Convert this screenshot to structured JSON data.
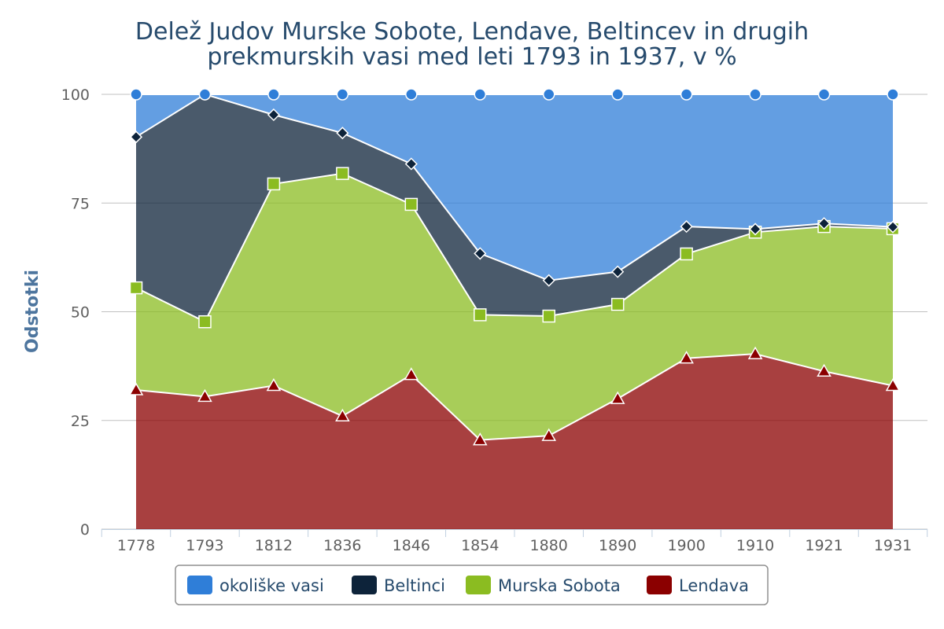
{
  "chart_data": {
    "type": "area",
    "stacking": "percent",
    "title": "Delež Judov Murske Sobote, Lendave, Beltincev in drugih",
    "subtitle": "prekmurskih vasi med leti 1793 in 1937, v %",
    "xlabel": "",
    "ylabel": "Odstotki",
    "ylim": [
      0,
      100
    ],
    "yticks": [
      "0",
      "25",
      "50",
      "75",
      "100"
    ],
    "categories": [
      "1778",
      "1793",
      "1812",
      "1836",
      "1846",
      "1854",
      "1880",
      "1890",
      "1900",
      "1910",
      "1921",
      "1931"
    ],
    "series": [
      {
        "name": "Lendava",
        "color": "#8b0000",
        "marker": "triangle",
        "values": [
          32,
          30.5,
          33,
          26,
          35.5,
          20.5,
          21.5,
          30,
          39.3,
          40.3,
          36.3,
          33
        ]
      },
      {
        "name": "Murska Sobota",
        "color": "#8bbc21",
        "marker": "square",
        "values": [
          23.5,
          17.2,
          46.4,
          55.8,
          39.2,
          28.8,
          27.5,
          21.7,
          24,
          28,
          33.3,
          36.1
        ]
      },
      {
        "name": "Beltinci",
        "color": "#0d233a",
        "marker": "diamond",
        "values": [
          34.7,
          52.3,
          15.9,
          9.3,
          9.3,
          14.1,
          8.2,
          7.5,
          6.3,
          0.7,
          0.7,
          0.4
        ]
      },
      {
        "name": "okoliške vasi",
        "color": "#2f7ed8",
        "marker": "circle",
        "values": [
          9.8,
          0,
          4.7,
          8.9,
          16,
          36.6,
          42.8,
          40.8,
          30.4,
          31,
          29.7,
          30.5
        ]
      }
    ],
    "legend_order": [
      "okoliške vasi",
      "Beltinci",
      "Murska Sobota",
      "Lendava"
    ],
    "legend_position": "bottom-center",
    "grid": true
  }
}
